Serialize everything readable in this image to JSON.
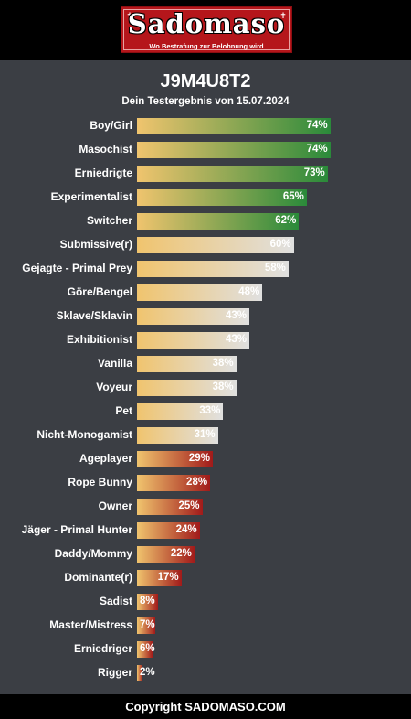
{
  "header": {
    "logo_title": "Sadomaso",
    "logo_subtitle": "Wo Bestrafung zur Belohnung wird"
  },
  "result": {
    "title": "J9M4U8T2",
    "subtitle": "Dein Testergebnis von 15.07.2024"
  },
  "chart_data": {
    "type": "bar",
    "categories": [
      "Boy/Girl",
      "Masochist",
      "Erniedrigte",
      "Experimentalist",
      "Switcher",
      "Submissive(r)",
      "Gejagte - Primal Prey",
      "Göre/Bengel",
      "Sklave/Sklavin",
      "Exhibitionist",
      "Vanilla",
      "Voyeur",
      "Pet",
      "Nicht-Monogamist",
      "Ageplayer",
      "Rope Bunny",
      "Owner",
      "Jäger - Primal Hunter",
      "Daddy/Mommy",
      "Dominante(r)",
      "Sadist",
      "Master/Mistress",
      "Erniedriger",
      "Rigger"
    ],
    "values": [
      74,
      74,
      73,
      65,
      62,
      60,
      58,
      48,
      43,
      43,
      38,
      38,
      33,
      31,
      29,
      28,
      25,
      24,
      22,
      17,
      8,
      7,
      6,
      2
    ],
    "value_labels": [
      "74%",
      "74%",
      "73%",
      "65%",
      "62%",
      "60%",
      "58%",
      "48%",
      "43%",
      "43%",
      "38%",
      "38%",
      "33%",
      "31%",
      "29%",
      "28%",
      "25%",
      "24%",
      "22%",
      "17%",
      "8%",
      "7%",
      "6%",
      "2%"
    ],
    "colors": [
      "#2a8a3a",
      "#2a8a3a",
      "#2a8a3a",
      "#2a8a3a",
      "#2a8a3a",
      "#e0e0e0",
      "#e0e0e0",
      "#e0e0e0",
      "#e0e0e0",
      "#e0e0e0",
      "#e0e0e0",
      "#e0e0e0",
      "#e0e0e0",
      "#e0e0e0",
      "#a11a1a",
      "#a11a1a",
      "#a11a1a",
      "#a11a1a",
      "#a11a1a",
      "#a11a1a",
      "#a11a1a",
      "#a11a1a",
      "#a11a1a",
      "#a11a1a"
    ],
    "gradient_start": "#f0c46e",
    "xlim": [
      0,
      100
    ]
  },
  "footer": {
    "copyright": "Copyright SADOMASO.COM"
  }
}
